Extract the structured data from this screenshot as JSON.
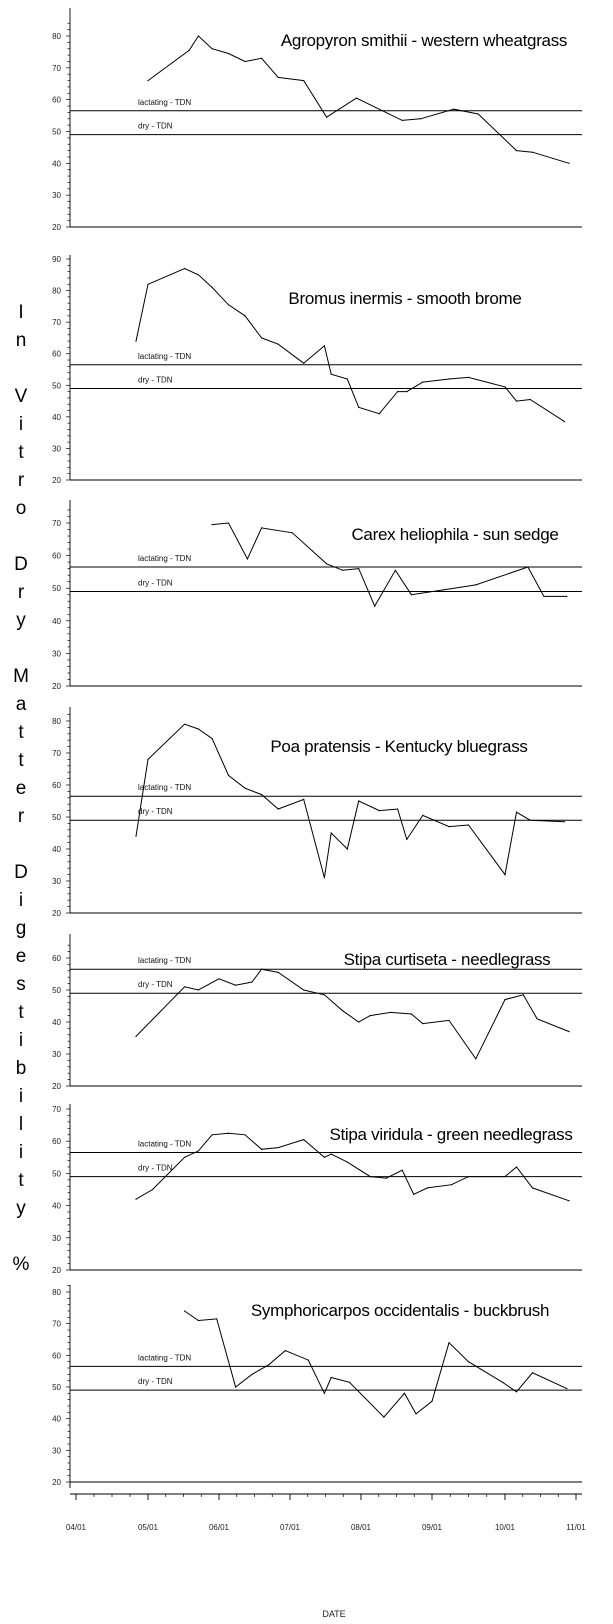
{
  "chart_data": {
    "type": "line",
    "layout": "small-multiples",
    "ylabel": "In Vitro Dry Matter Digestibility %",
    "xlabel": "DATE",
    "x_ticks": [
      "04/01",
      "05/01",
      "06/01",
      "07/01",
      "08/01",
      "09/01",
      "10/01",
      "11/01"
    ],
    "reference_lines": [
      {
        "label": "lactating - TDN",
        "y": 56.5
      },
      {
        "label": "dry - TDN",
        "y": 49
      }
    ],
    "panels": [
      {
        "title": "Agropyron smithii - western wheatgrass",
        "ylim": [
          20,
          85
        ],
        "yticks": [
          20,
          30,
          40,
          50,
          60,
          70,
          80
        ],
        "x": [
          "05/01",
          "05/19",
          "05/23",
          "05/29",
          "06/05",
          "06/12",
          "06/19",
          "06/26",
          "07/07",
          "07/17",
          "07/30",
          "08/19",
          "08/27",
          "09/10",
          "09/20",
          "10/06",
          "10/13",
          "10/29"
        ],
        "y": [
          66,
          75.5,
          80,
          76,
          74.5,
          72,
          73,
          67,
          66,
          54.5,
          60.5,
          53.5,
          54,
          57,
          55.5,
          44,
          43.5,
          40
        ]
      },
      {
        "title": "Bromus inermis - smooth brome",
        "ylim": [
          20,
          92
        ],
        "yticks": [
          20,
          30,
          40,
          50,
          60,
          70,
          80,
          90
        ],
        "x": [
          "04/26",
          "05/01",
          "05/17",
          "05/23",
          "05/29",
          "06/05",
          "06/12",
          "06/19",
          "06/26",
          "07/07",
          "07/16",
          "07/19",
          "07/26",
          "07/31",
          "08/09",
          "08/17",
          "08/21",
          "08/28",
          "09/08",
          "09/16",
          "10/01",
          "10/06",
          "10/12",
          "10/27"
        ],
        "y": [
          64,
          82,
          87,
          85,
          81,
          75.5,
          72,
          65,
          63,
          57,
          62.5,
          53.5,
          52,
          43,
          41,
          48,
          48,
          51,
          52,
          52.5,
          49.5,
          45,
          45.5,
          38.5
        ]
      },
      {
        "title": "Carex heliophila - sun sedge",
        "ylim": [
          20,
          75
        ],
        "yticks": [
          20,
          30,
          40,
          50,
          60,
          70
        ],
        "x": [
          "05/29",
          "06/05",
          "06/13",
          "06/19",
          "07/02",
          "07/17",
          "07/24",
          "07/31",
          "08/07",
          "08/16",
          "08/23",
          "09/06",
          "09/19",
          "10/11",
          "10/18",
          "10/28"
        ],
        "y": [
          69.5,
          70,
          59,
          68.5,
          67,
          57.5,
          55.5,
          56,
          44.5,
          55.5,
          48,
          49.5,
          51,
          56.5,
          47.5,
          47.5
        ]
      },
      {
        "title": "Poa pratensis - Kentucky bluegrass",
        "ylim": [
          20,
          83
        ],
        "yticks": [
          20,
          30,
          40,
          50,
          60,
          70,
          80
        ],
        "x": [
          "04/26",
          "05/01",
          "05/17",
          "05/23",
          "05/29",
          "06/05",
          "06/12",
          "06/19",
          "06/26",
          "07/07",
          "07/16",
          "07/19",
          "07/26",
          "07/31",
          "08/09",
          "08/17",
          "08/21",
          "08/28",
          "09/08",
          "09/16",
          "10/01",
          "10/06",
          "10/12",
          "10/27"
        ],
        "y": [
          44,
          68,
          79,
          77.5,
          74.5,
          63,
          59,
          57,
          52.5,
          55.5,
          31,
          45,
          40,
          55,
          52,
          52.5,
          43,
          50.5,
          47,
          47.5,
          32,
          51.5,
          49,
          48.5
        ]
      },
      {
        "title": "Stipa curtiseta - needlegrass",
        "ylim": [
          20,
          65
        ],
        "yticks": [
          20,
          30,
          40,
          50,
          60
        ],
        "x": [
          "04/26",
          "05/17",
          "05/23",
          "06/01",
          "06/08",
          "06/15",
          "06/19",
          "06/26",
          "07/07",
          "07/16",
          "07/24",
          "07/31",
          "08/05",
          "08/14",
          "08/23",
          "08/28",
          "09/08",
          "09/19",
          "10/01",
          "10/09",
          "10/15",
          "10/29"
        ],
        "y": [
          35.5,
          51,
          50,
          53.5,
          51.5,
          52.5,
          56.5,
          55.5,
          50,
          48.5,
          43.5,
          40,
          42,
          43,
          42.5,
          39.5,
          40.5,
          28.5,
          47,
          48.5,
          41,
          37
        ]
      },
      {
        "title": "Stipa viridula - green needlegrass",
        "ylim": [
          20,
          71
        ],
        "yticks": [
          20,
          30,
          40,
          50,
          60,
          70
        ],
        "x": [
          "04/26",
          "05/03",
          "05/17",
          "05/23",
          "05/29",
          "06/05",
          "06/12",
          "06/19",
          "06/26",
          "07/07",
          "07/16",
          "07/19",
          "07/26",
          "08/05",
          "08/12",
          "08/19",
          "08/24",
          "08/30",
          "09/09",
          "09/16",
          "10/01",
          "10/06",
          "10/13",
          "10/29"
        ],
        "y": [
          42,
          45,
          55,
          57,
          62,
          62.5,
          62,
          57.5,
          58,
          60.5,
          55,
          56,
          53.5,
          49,
          48.5,
          51,
          43.5,
          45.5,
          46.5,
          49,
          49,
          52,
          45.5,
          41.5
        ]
      },
      {
        "title": "Symphoricarpos occidentalis - buckbrush",
        "ylim": [
          20,
          82
        ],
        "yticks": [
          20,
          30,
          40,
          50,
          60,
          70,
          80
        ],
        "x": [
          "05/17",
          "05/23",
          "05/31",
          "06/08",
          "06/15",
          "06/22",
          "06/29",
          "07/09",
          "07/16",
          "07/19",
          "07/27",
          "08/11",
          "08/20",
          "08/25",
          "09/01",
          "09/08",
          "09/16",
          "09/30",
          "10/06",
          "10/13",
          "10/28"
        ],
        "y": [
          74,
          71,
          71.5,
          50,
          54,
          57,
          61.5,
          58.5,
          48,
          53,
          51.5,
          40.5,
          48,
          41.5,
          45.5,
          64,
          58,
          51.5,
          48.5,
          54.5,
          49.5
        ]
      }
    ]
  }
}
